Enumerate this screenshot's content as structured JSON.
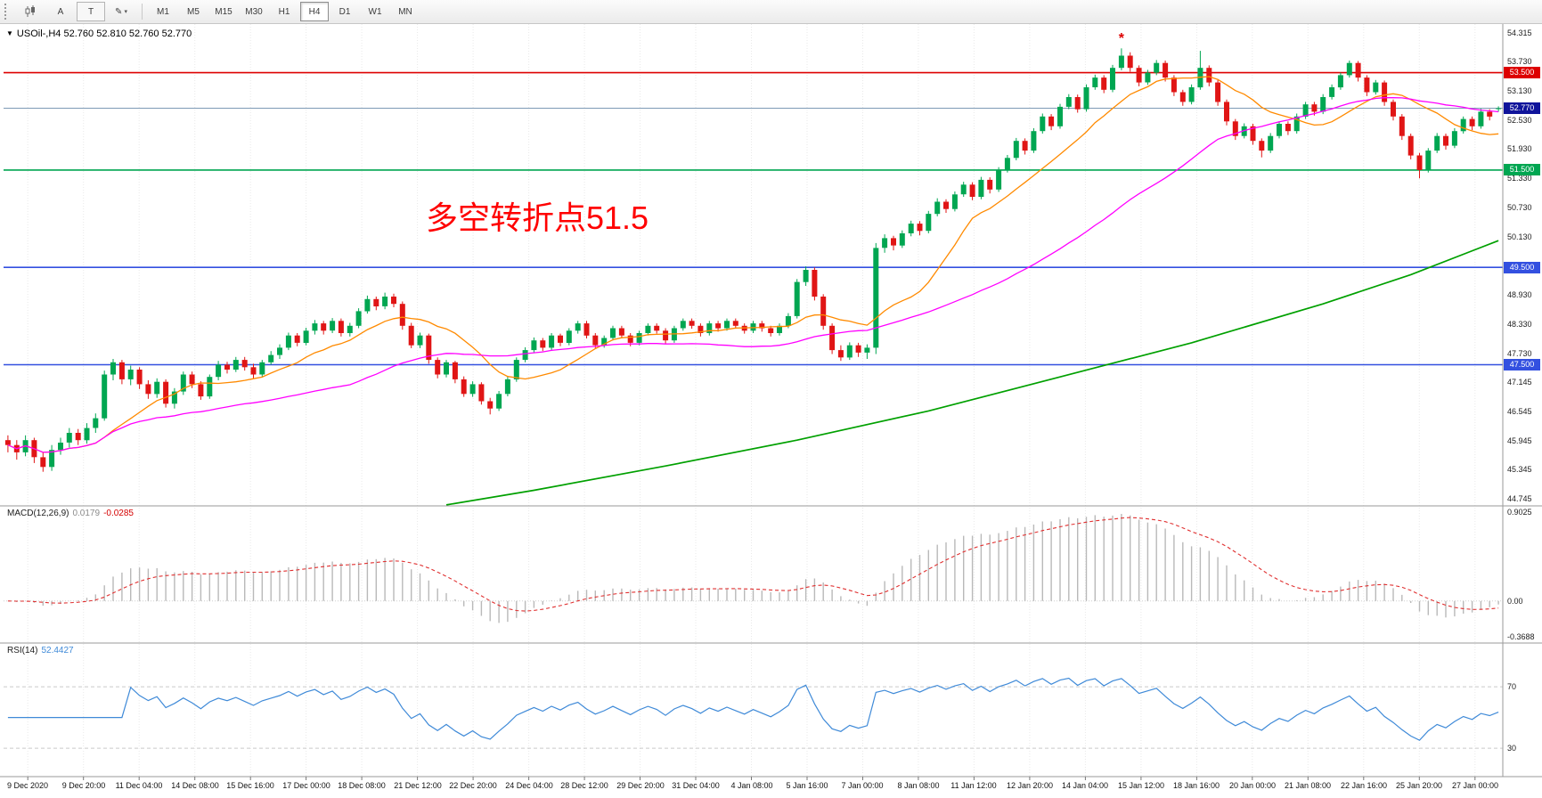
{
  "icons": {
    "dropdown": "▼",
    "pencil": "✎",
    "caret": "▾"
  },
  "toolbar": {
    "tools": [
      {
        "name": "label-tool",
        "label": "A"
      },
      {
        "name": "text-tool",
        "label": "T"
      }
    ],
    "timeframes": [
      "M1",
      "M5",
      "M15",
      "M30",
      "H1",
      "H4",
      "D1",
      "W1",
      "MN"
    ],
    "selected_timeframe": "H4"
  },
  "chart_header": {
    "symbol": "USOil-,H4",
    "ohlc": "52.760 52.810 52.760 52.770"
  },
  "annotation": {
    "text": "多空转折点51.5",
    "color": "#ff0000"
  },
  "hlines": [
    {
      "price": 53.5,
      "color": "#dd0000",
      "label": "53.500"
    },
    {
      "price": 51.5,
      "color": "#00a651",
      "label": "51.500"
    },
    {
      "price": 49.5,
      "color": "#3350e0",
      "label": "49.500"
    },
    {
      "price": 47.5,
      "color": "#3350e0",
      "label": "47.500"
    }
  ],
  "current_price": {
    "value": 52.77,
    "label": "52.770",
    "line_color": "#7e9ab5",
    "badge_color": "#10149b"
  },
  "price_axis": {
    "ticks": [
      "54.315",
      "53.730",
      "53.130",
      "52.530",
      "51.930",
      "51.330",
      "50.730",
      "50.130",
      "49.530",
      "48.930",
      "48.330",
      "47.730",
      "47.145",
      "46.545",
      "45.945",
      "45.345",
      "44.745"
    ]
  },
  "macd_panel": {
    "label": "MACD(12,26,9)",
    "value1": "0.0179",
    "value2": "-0.0285",
    "axis_top": "0.9025",
    "axis_zero": "0.00",
    "axis_bottom": "-0.3688"
  },
  "rsi_panel": {
    "label": "RSI(14)",
    "value": "52.4427",
    "levels": [
      70,
      30
    ],
    "axis": [
      "70",
      "30"
    ]
  },
  "time_axis": {
    "labels": [
      "9 Dec 2020",
      "9 Dec 20:00",
      "11 Dec 04:00",
      "14 Dec 08:00",
      "15 Dec 16:00",
      "17 Dec 00:00",
      "18 Dec 08:00",
      "21 Dec 12:00",
      "22 Dec 20:00",
      "24 Dec 04:00",
      "28 Dec 12:00",
      "29 Dec 20:00",
      "31 Dec 04:00",
      "4 Jan 08:00",
      "5 Jan 16:00",
      "7 Jan 00:00",
      "8 Jan 08:00",
      "11 Jan 12:00",
      "12 Jan 20:00",
      "14 Jan 04:00",
      "15 Jan 12:00",
      "18 Jan 16:00",
      "20 Jan 00:00",
      "21 Jan 08:00",
      "22 Jan 16:00",
      "25 Jan 20:00",
      "27 Jan 00:00"
    ]
  },
  "chart_data": {
    "type": "candlestick",
    "symbol": "USOil-,H4",
    "timeframe": "H4",
    "price_range": [
      44.6,
      54.5
    ],
    "up_color": "#00a651",
    "down_color": "#e01515",
    "candles": [
      [
        45.95,
        46.05,
        45.7,
        45.85
      ],
      [
        45.85,
        45.95,
        45.55,
        45.7
      ],
      [
        45.7,
        46.05,
        45.62,
        45.95
      ],
      [
        45.95,
        46.0,
        45.48,
        45.6
      ],
      [
        45.6,
        45.7,
        45.3,
        45.4
      ],
      [
        45.4,
        45.85,
        45.32,
        45.75
      ],
      [
        45.75,
        46.0,
        45.65,
        45.9
      ],
      [
        45.9,
        46.2,
        45.8,
        46.1
      ],
      [
        46.1,
        46.18,
        45.85,
        45.95
      ],
      [
        45.95,
        46.3,
        45.88,
        46.2
      ],
      [
        46.2,
        46.5,
        46.1,
        46.4
      ],
      [
        46.4,
        47.38,
        46.35,
        47.3
      ],
      [
        47.3,
        47.62,
        47.18,
        47.55
      ],
      [
        47.55,
        47.6,
        47.1,
        47.2
      ],
      [
        47.2,
        47.48,
        47.08,
        47.4
      ],
      [
        47.4,
        47.45,
        47.0,
        47.1
      ],
      [
        47.1,
        47.18,
        46.8,
        46.9
      ],
      [
        46.9,
        47.22,
        46.82,
        47.15
      ],
      [
        47.15,
        47.2,
        46.62,
        46.7
      ],
      [
        46.7,
        47.02,
        46.6,
        46.95
      ],
      [
        46.95,
        47.36,
        46.88,
        47.3
      ],
      [
        47.3,
        47.36,
        47.02,
        47.1
      ],
      [
        47.1,
        47.16,
        46.78,
        46.85
      ],
      [
        46.85,
        47.3,
        46.8,
        47.25
      ],
      [
        47.25,
        47.58,
        47.18,
        47.5
      ],
      [
        47.5,
        47.56,
        47.32,
        47.4
      ],
      [
        47.4,
        47.66,
        47.35,
        47.6
      ],
      [
        47.6,
        47.66,
        47.38,
        47.45
      ],
      [
        47.45,
        47.52,
        47.22,
        47.3
      ],
      [
        47.3,
        47.6,
        47.25,
        47.55
      ],
      [
        47.55,
        47.78,
        47.5,
        47.7
      ],
      [
        47.7,
        47.92,
        47.62,
        47.85
      ],
      [
        47.85,
        48.16,
        47.8,
        48.1
      ],
      [
        48.1,
        48.15,
        47.88,
        47.95
      ],
      [
        47.95,
        48.26,
        47.9,
        48.2
      ],
      [
        48.2,
        48.42,
        48.12,
        48.35
      ],
      [
        48.35,
        48.4,
        48.12,
        48.2
      ],
      [
        48.2,
        48.46,
        48.15,
        48.4
      ],
      [
        48.4,
        48.45,
        48.08,
        48.15
      ],
      [
        48.15,
        48.36,
        48.08,
        48.3
      ],
      [
        48.3,
        48.66,
        48.25,
        48.6
      ],
      [
        48.6,
        48.92,
        48.55,
        48.85
      ],
      [
        48.85,
        48.9,
        48.62,
        48.7
      ],
      [
        48.7,
        48.98,
        48.64,
        48.9
      ],
      [
        48.9,
        48.96,
        48.68,
        48.75
      ],
      [
        48.75,
        48.8,
        48.22,
        48.3
      ],
      [
        48.3,
        48.36,
        47.84,
        47.9
      ],
      [
        47.9,
        48.16,
        47.84,
        48.1
      ],
      [
        48.1,
        48.14,
        47.52,
        47.6
      ],
      [
        47.6,
        47.65,
        47.22,
        47.3
      ],
      [
        47.3,
        47.6,
        47.24,
        47.55
      ],
      [
        47.55,
        47.58,
        47.12,
        47.2
      ],
      [
        47.2,
        47.26,
        46.84,
        46.9
      ],
      [
        46.9,
        47.16,
        46.84,
        47.1
      ],
      [
        47.1,
        47.14,
        46.68,
        46.75
      ],
      [
        46.75,
        46.82,
        46.48,
        46.6
      ],
      [
        46.6,
        46.96,
        46.55,
        46.9
      ],
      [
        46.9,
        47.26,
        46.85,
        47.2
      ],
      [
        47.2,
        47.65,
        47.15,
        47.6
      ],
      [
        47.6,
        47.86,
        47.55,
        47.8
      ],
      [
        47.8,
        48.06,
        47.74,
        48.0
      ],
      [
        48.0,
        48.05,
        47.78,
        47.85
      ],
      [
        47.85,
        48.15,
        47.8,
        48.1
      ],
      [
        48.1,
        48.14,
        47.88,
        47.95
      ],
      [
        47.95,
        48.25,
        47.9,
        48.2
      ],
      [
        48.2,
        48.4,
        48.14,
        48.35
      ],
      [
        48.35,
        48.4,
        48.04,
        48.1
      ],
      [
        48.1,
        48.15,
        47.84,
        47.9
      ],
      [
        47.9,
        48.1,
        47.85,
        48.05
      ],
      [
        48.05,
        48.3,
        48.0,
        48.25
      ],
      [
        48.25,
        48.3,
        48.04,
        48.1
      ],
      [
        48.1,
        48.15,
        47.88,
        47.95
      ],
      [
        47.95,
        48.2,
        47.9,
        48.15
      ],
      [
        48.15,
        48.35,
        48.1,
        48.3
      ],
      [
        48.3,
        48.35,
        48.14,
        48.2
      ],
      [
        48.2,
        48.25,
        47.94,
        48.0
      ],
      [
        48.0,
        48.3,
        47.95,
        48.25
      ],
      [
        48.25,
        48.45,
        48.2,
        48.4
      ],
      [
        48.4,
        48.45,
        48.24,
        48.3
      ],
      [
        48.3,
        48.35,
        48.08,
        48.15
      ],
      [
        48.15,
        48.4,
        48.1,
        48.35
      ],
      [
        48.35,
        48.4,
        48.18,
        48.25
      ],
      [
        48.25,
        48.45,
        48.2,
        48.4
      ],
      [
        48.4,
        48.45,
        48.24,
        48.3
      ],
      [
        48.3,
        48.35,
        48.14,
        48.2
      ],
      [
        48.2,
        48.4,
        48.15,
        48.35
      ],
      [
        48.35,
        48.4,
        48.18,
        48.25
      ],
      [
        48.25,
        48.3,
        48.08,
        48.15
      ],
      [
        48.15,
        48.35,
        48.1,
        48.3
      ],
      [
        48.3,
        48.56,
        48.25,
        48.5
      ],
      [
        48.5,
        49.26,
        48.45,
        49.2
      ],
      [
        49.2,
        49.52,
        49.12,
        49.45
      ],
      [
        49.45,
        49.5,
        48.82,
        48.9
      ],
      [
        48.9,
        48.95,
        48.22,
        48.3
      ],
      [
        48.3,
        48.35,
        47.72,
        47.8
      ],
      [
        47.8,
        47.9,
        47.58,
        47.65
      ],
      [
        47.65,
        47.96,
        47.6,
        47.9
      ],
      [
        47.9,
        47.95,
        47.66,
        47.75
      ],
      [
        47.75,
        47.92,
        47.62,
        47.85
      ],
      [
        47.85,
        50.0,
        47.72,
        49.9
      ],
      [
        49.9,
        50.18,
        49.8,
        50.1
      ],
      [
        50.1,
        50.15,
        49.85,
        49.95
      ],
      [
        49.95,
        50.26,
        49.9,
        50.2
      ],
      [
        50.2,
        50.46,
        50.14,
        50.4
      ],
      [
        50.4,
        50.45,
        50.16,
        50.25
      ],
      [
        50.25,
        50.66,
        50.2,
        50.6
      ],
      [
        50.6,
        50.92,
        50.55,
        50.85
      ],
      [
        50.85,
        50.9,
        50.62,
        50.7
      ],
      [
        50.7,
        51.06,
        50.65,
        51.0
      ],
      [
        51.0,
        51.26,
        50.95,
        51.2
      ],
      [
        51.2,
        51.25,
        50.88,
        50.95
      ],
      [
        50.95,
        51.36,
        50.9,
        51.3
      ],
      [
        51.3,
        51.35,
        51.02,
        51.1
      ],
      [
        51.1,
        51.56,
        51.05,
        51.5
      ],
      [
        51.5,
        51.81,
        51.45,
        51.75
      ],
      [
        51.75,
        52.16,
        51.7,
        52.1
      ],
      [
        52.1,
        52.15,
        51.82,
        51.9
      ],
      [
        51.9,
        52.36,
        51.85,
        52.3
      ],
      [
        52.3,
        52.66,
        52.25,
        52.6
      ],
      [
        52.6,
        52.65,
        52.32,
        52.4
      ],
      [
        52.4,
        52.86,
        52.35,
        52.8
      ],
      [
        52.8,
        53.06,
        52.75,
        53.0
      ],
      [
        53.0,
        53.05,
        52.68,
        52.75
      ],
      [
        52.75,
        53.26,
        52.7,
        53.2
      ],
      [
        53.2,
        53.46,
        53.15,
        53.4
      ],
      [
        53.4,
        53.45,
        53.08,
        53.15
      ],
      [
        53.15,
        53.66,
        53.1,
        53.6
      ],
      [
        53.6,
        54.0,
        53.55,
        53.85
      ],
      [
        53.85,
        53.92,
        53.52,
        53.6
      ],
      [
        53.6,
        53.65,
        53.22,
        53.3
      ],
      [
        53.3,
        53.56,
        53.25,
        53.5
      ],
      [
        53.5,
        53.76,
        53.45,
        53.7
      ],
      [
        53.7,
        53.75,
        53.32,
        53.4
      ],
      [
        53.4,
        53.45,
        53.02,
        53.1
      ],
      [
        53.1,
        53.15,
        52.82,
        52.9
      ],
      [
        52.9,
        53.26,
        52.85,
        53.2
      ],
      [
        53.2,
        53.95,
        53.15,
        53.6
      ],
      [
        53.6,
        53.65,
        53.22,
        53.3
      ],
      [
        53.3,
        53.35,
        52.82,
        52.9
      ],
      [
        52.9,
        52.95,
        52.42,
        52.5
      ],
      [
        52.5,
        52.55,
        52.12,
        52.2
      ],
      [
        52.2,
        52.46,
        52.15,
        52.4
      ],
      [
        52.4,
        52.45,
        52.02,
        52.1
      ],
      [
        52.1,
        52.15,
        51.76,
        51.9
      ],
      [
        51.9,
        52.26,
        51.85,
        52.2
      ],
      [
        52.2,
        52.5,
        52.15,
        52.45
      ],
      [
        52.45,
        52.5,
        52.22,
        52.3
      ],
      [
        52.3,
        52.66,
        52.25,
        52.6
      ],
      [
        52.6,
        52.9,
        52.55,
        52.85
      ],
      [
        52.85,
        52.9,
        52.62,
        52.7
      ],
      [
        52.7,
        53.06,
        52.65,
        53.0
      ],
      [
        53.0,
        53.26,
        52.95,
        53.2
      ],
      [
        53.2,
        53.5,
        53.15,
        53.45
      ],
      [
        53.45,
        53.75,
        53.4,
        53.7
      ],
      [
        53.7,
        53.74,
        53.32,
        53.4
      ],
      [
        53.4,
        53.45,
        53.02,
        53.1
      ],
      [
        53.1,
        53.35,
        53.05,
        53.3
      ],
      [
        53.3,
        53.34,
        52.82,
        52.9
      ],
      [
        52.9,
        52.95,
        52.52,
        52.6
      ],
      [
        52.6,
        52.65,
        52.12,
        52.2
      ],
      [
        52.2,
        52.25,
        51.72,
        51.8
      ],
      [
        51.8,
        51.85,
        51.33,
        51.5
      ],
      [
        51.5,
        51.95,
        51.45,
        51.9
      ],
      [
        51.9,
        52.26,
        51.85,
        52.2
      ],
      [
        52.2,
        52.25,
        51.92,
        52.0
      ],
      [
        52.0,
        52.36,
        51.95,
        52.3
      ],
      [
        52.3,
        52.6,
        52.25,
        52.55
      ],
      [
        52.55,
        52.6,
        52.32,
        52.4
      ],
      [
        52.4,
        52.76,
        52.35,
        52.7
      ],
      [
        52.7,
        52.75,
        52.52,
        52.6
      ],
      [
        52.76,
        52.81,
        52.7,
        52.77
      ]
    ],
    "moving_averages": {
      "fast": {
        "period": 12,
        "color": "#ff8a00"
      },
      "medium": {
        "period": 40,
        "color": "#ff00ff"
      },
      "slow": {
        "color": "#00a000",
        "points": [
          [
            50,
            44.62
          ],
          [
            60,
            44.92
          ],
          [
            75,
            45.42
          ],
          [
            90,
            45.95
          ],
          [
            105,
            46.55
          ],
          [
            120,
            47.25
          ],
          [
            135,
            47.95
          ],
          [
            150,
            48.75
          ],
          [
            160,
            49.35
          ],
          [
            170,
            50.05
          ]
        ]
      }
    },
    "markers": [
      {
        "index": 127,
        "price": 54.12,
        "symbol": "*",
        "color": "#dd0000"
      }
    ],
    "macd": {
      "params": [
        12,
        26,
        9
      ],
      "scale_max": 0.9025,
      "scale_min": -0.3688,
      "histogram_color": "#b9b9b9",
      "signal_color": "#e03030"
    },
    "rsi": {
      "period": 14,
      "current": 52.4427,
      "line_color": "#3f8ad8"
    }
  }
}
